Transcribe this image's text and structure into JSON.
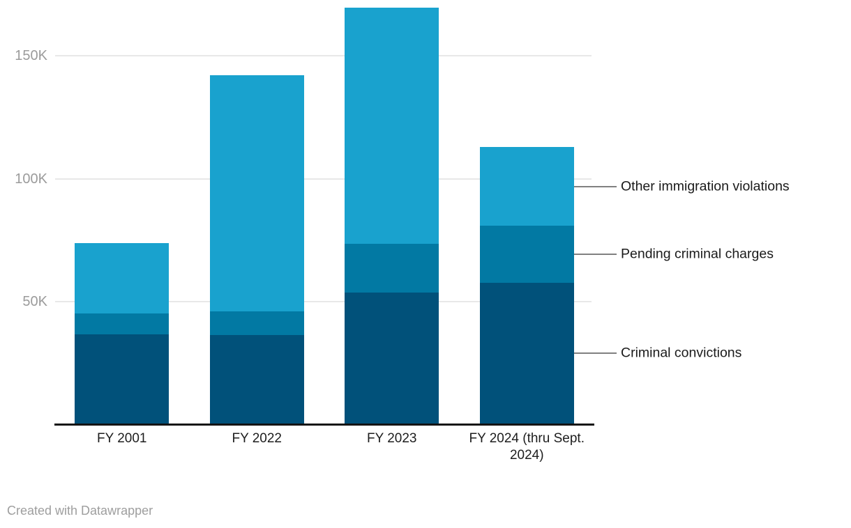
{
  "footer": {
    "attribution": "Created with Datawrapper"
  },
  "colors": {
    "criminal_convictions": "#01517A",
    "pending_criminal_charges": "#0279A3",
    "other_immigration_violations": "#19A2CE",
    "gridline": "#e8e8e8",
    "axis_line": "#141414",
    "tick_label": "#9b9b9b",
    "leader_line": "#808080"
  },
  "chart_data": {
    "type": "bar",
    "stacked": true,
    "orientation": "vertical",
    "title": "",
    "xlabel": "",
    "ylabel": "",
    "categories": [
      "FY 2001",
      "FY 2022",
      "FY 2023",
      "FY 2024 (thru Sept. 2024)"
    ],
    "series": [
      {
        "name": "Criminal convictions",
        "color": "#01517A",
        "values": [
          36500,
          36200,
          53500,
          57700
        ]
      },
      {
        "name": "Pending criminal charges",
        "color": "#0279A3",
        "values": [
          8700,
          9900,
          20000,
          23100
        ]
      },
      {
        "name": "Other immigration violations",
        "color": "#19A2CE",
        "values": [
          28700,
          96100,
          96300,
          32000
        ]
      }
    ],
    "totals": [
      73900,
      142200,
      169800,
      112800
    ],
    "y_ticks": [
      {
        "value": 50000,
        "label": "50K"
      },
      {
        "value": 100000,
        "label": "100K"
      },
      {
        "value": 150000,
        "label": "150K"
      }
    ],
    "ylim": [
      0,
      172800
    ],
    "grid": true,
    "legend_position": "right-edge annotations pointing at last bar segments",
    "annotations": [
      {
        "text": "Other immigration violations"
      },
      {
        "text": "Pending criminal charges"
      },
      {
        "text": "Criminal convictions"
      }
    ]
  }
}
